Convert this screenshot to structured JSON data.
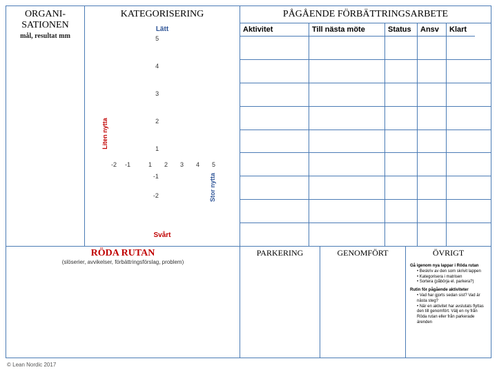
{
  "org": {
    "title1": "ORGANI-",
    "title2": "SATIONEN",
    "sub": "mål, resultat mm"
  },
  "kategorisering": {
    "title": "KATEGORISERING",
    "top_label": "Lätt",
    "bottom_label": "Svårt",
    "left_label": "Liten nytta",
    "right_label": "Stor nytta",
    "y_ticks": [
      "5",
      "4",
      "3",
      "2",
      "1",
      "-1",
      "-2"
    ],
    "x_ticks": [
      "-2",
      "-1",
      "1",
      "2",
      "3",
      "4",
      "5"
    ],
    "axis_color": "#333333",
    "red_color": "#c00000",
    "blue_color": "#2f5597"
  },
  "improve": {
    "title": "PÅGÅENDE FÖRBÄTTRINGSARBETE",
    "columns": {
      "aktivitet": "Aktivitet",
      "till": "Till nästa möte",
      "status": "Status",
      "ansv": "Ansv",
      "klart": "Klart"
    },
    "row_count": 9
  },
  "roda": {
    "title": "RÖDA RUTAN",
    "sub": "(slöserier, avvikelser, förbättringsförslag, problem)"
  },
  "parking": {
    "title": "PARKERING"
  },
  "genomfort": {
    "title": "GENOMFÖRT"
  },
  "ovrigt": {
    "title": "ÖVRIGT",
    "block1_header": "Gå igenom nya lappar i Röda rutan",
    "block1_bullets": [
      "Beskriv av den som skrivit lappen",
      "Kategorisera i matrisen",
      "Sortera (påbörja el. parkera?)"
    ],
    "block2_header": "Rutin för pågående aktiviteter",
    "block2_bullets": [
      "Vad har gjorts sedan sist? Vad är nästa steg?",
      "När en aktivitet har avslutats flyttas den till genomfört. Välj en ny från Röda rutan eller från parkerade ärenden"
    ]
  },
  "footer": "© Lean Nordic 2017",
  "colors": {
    "border": "#4a7bb5",
    "background": "#ffffff"
  }
}
